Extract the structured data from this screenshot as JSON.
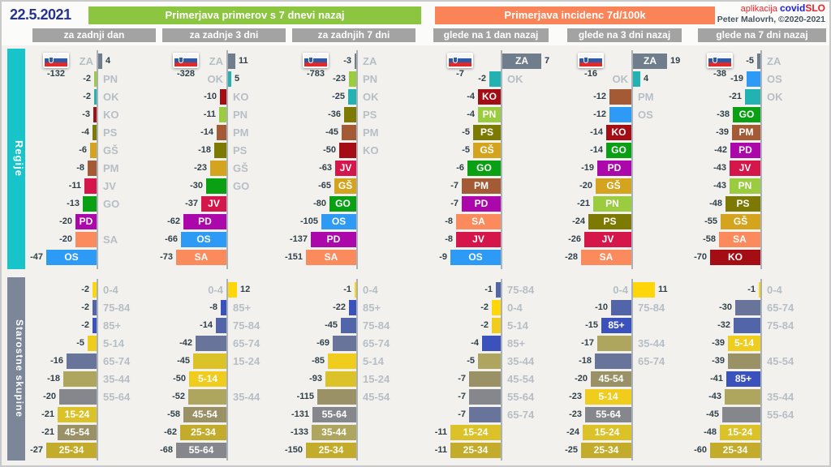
{
  "date": "22.5.2021",
  "headers": {
    "cases": "Primerjava primerov s 7 dnevi nazaj",
    "incidence": "Primerjava incidenc 7d/100k"
  },
  "subheaders": [
    "za zadnji dan",
    "za zadnje 3 dni",
    "za zadnjih 7 dni",
    "glede na 1 dan nazaj",
    "glede na 3 dni nazaj",
    "glede na 7 dni nazaj"
  ],
  "app": {
    "prefix": "aplikacija",
    "name_blue": "covid",
    "name_red": "SLO",
    "credit": "Peter Malovrh, ©2020-2021"
  },
  "sections": {
    "regions_label": "Regije",
    "ages_label": "Starostne skupine"
  },
  "colors": {
    "series": {
      "ZA": "#6f7d8c",
      "PN": "#9bcc40",
      "OK": "#22b2b2",
      "KO": "#a50d15",
      "PS": "#7d7a04",
      "GŠ": "#d5a41f",
      "PM": "#a35a35",
      "JV": "#d5164a",
      "GO": "#0aa014",
      "PD": "#ab07ab",
      "SA": "#fb8a5c",
      "OS": "#2d9bf5",
      "0-4": "#ffd60a",
      "5-14": "#f0cc1c",
      "15-24": "#dcc229",
      "25-34": "#c3ac2b",
      "35-44": "#aea55e",
      "45-54": "#9a9166",
      "55-64": "#85878c",
      "65-74": "#687499",
      "75-84": "#5265a8",
      "85+": "#3b52bd"
    },
    "ui": {
      "green_header": "#8cc540",
      "orange_header": "#fa8458",
      "subheader_gray": "#a3a3a3",
      "date_navy": "#27348b",
      "regions_cyan": "#16c4ca",
      "ages_slate": "#7b8698",
      "value_text": "#30414b",
      "muted_label": "#b6bec6",
      "axis": "#aab1b7",
      "brand_red": "#e8252a",
      "brand_blue": "#1f1fd0"
    }
  },
  "chart_data": [
    {
      "type": "bar",
      "section": "Regije",
      "period": "za zadnji dan",
      "flag_total": -132,
      "bars": [
        {
          "label": "ZA",
          "value": 4,
          "inside": false
        },
        {
          "label": "PN",
          "value": -2,
          "inside": false
        },
        {
          "label": "OK",
          "value": -2,
          "inside": false
        },
        {
          "label": "KO",
          "value": -3,
          "inside": false
        },
        {
          "label": "PS",
          "value": -4,
          "inside": false
        },
        {
          "label": "GŠ",
          "value": -6,
          "inside": false
        },
        {
          "label": "PM",
          "value": -8,
          "inside": false
        },
        {
          "label": "JV",
          "value": -11,
          "inside": false
        },
        {
          "label": "GO",
          "value": -13,
          "inside": false
        },
        {
          "label": "PD",
          "value": -20,
          "inside": true
        },
        {
          "label": "SA",
          "value": -20,
          "inside": false
        },
        {
          "label": "OS",
          "value": -47,
          "inside": true
        }
      ]
    },
    {
      "type": "bar",
      "section": "Regije",
      "period": "za zadnje 3 dni",
      "flag_total": -328,
      "bars": [
        {
          "label": "ZA",
          "value": 11,
          "inside": false
        },
        {
          "label": "OK",
          "value": 5,
          "inside": false
        },
        {
          "label": "KO",
          "value": -10,
          "inside": false
        },
        {
          "label": "PN",
          "value": -11,
          "inside": false
        },
        {
          "label": "PM",
          "value": -14,
          "inside": false
        },
        {
          "label": "PS",
          "value": -18,
          "inside": false
        },
        {
          "label": "GŠ",
          "value": -23,
          "inside": false
        },
        {
          "label": "GO",
          "value": -30,
          "inside": false
        },
        {
          "label": "JV",
          "value": -37,
          "inside": true
        },
        {
          "label": "PD",
          "value": -62,
          "inside": true
        },
        {
          "label": "OS",
          "value": -66,
          "inside": true
        },
        {
          "label": "SA",
          "value": -73,
          "inside": true
        }
      ]
    },
    {
      "type": "bar",
      "section": "Regije",
      "period": "za zadnjih 7 dni",
      "flag_total": -783,
      "bars": [
        {
          "label": "ZA",
          "value": -3,
          "inside": false
        },
        {
          "label": "PN",
          "value": -23,
          "inside": false
        },
        {
          "label": "OK",
          "value": -25,
          "inside": false
        },
        {
          "label": "PS",
          "value": -36,
          "inside": false
        },
        {
          "label": "PM",
          "value": -45,
          "inside": false
        },
        {
          "label": "KO",
          "value": -50,
          "inside": false
        },
        {
          "label": "JV",
          "value": -63,
          "inside": true
        },
        {
          "label": "GŠ",
          "value": -65,
          "inside": true
        },
        {
          "label": "GO",
          "value": -80,
          "inside": true
        },
        {
          "label": "OS",
          "value": -105,
          "inside": true
        },
        {
          "label": "PD",
          "value": -137,
          "inside": true
        },
        {
          "label": "SA",
          "value": -151,
          "inside": true
        }
      ]
    },
    {
      "type": "bar",
      "section": "Regije",
      "period": "glede na 1 dan nazaj",
      "flag_total": -7,
      "bars": [
        {
          "label": "ZA",
          "value": 7,
          "inside": true
        },
        {
          "label": "OK",
          "value": -2,
          "inside": false
        },
        {
          "label": "KO",
          "value": -4,
          "inside": true
        },
        {
          "label": "PN",
          "value": -4,
          "inside": true
        },
        {
          "label": "PS",
          "value": -5,
          "inside": true
        },
        {
          "label": "GŠ",
          "value": -5,
          "inside": true
        },
        {
          "label": "GO",
          "value": -6,
          "inside": true
        },
        {
          "label": "PM",
          "value": -7,
          "inside": true
        },
        {
          "label": "PD",
          "value": -7,
          "inside": true
        },
        {
          "label": "SA",
          "value": -8,
          "inside": true
        },
        {
          "label": "JV",
          "value": -8,
          "inside": true
        },
        {
          "label": "OS",
          "value": -9,
          "inside": true
        }
      ]
    },
    {
      "type": "bar",
      "section": "Regije",
      "period": "glede na 3 dni nazaj",
      "flag_total": -16,
      "bars": [
        {
          "label": "ZA",
          "value": 19,
          "inside": true
        },
        {
          "label": "OK",
          "value": 4,
          "inside": false
        },
        {
          "label": "PM",
          "value": -12,
          "inside": false
        },
        {
          "label": "OS",
          "value": -12,
          "inside": false
        },
        {
          "label": "KO",
          "value": -14,
          "inside": true
        },
        {
          "label": "GO",
          "value": -14,
          "inside": true
        },
        {
          "label": "PD",
          "value": -19,
          "inside": true
        },
        {
          "label": "GŠ",
          "value": -20,
          "inside": true
        },
        {
          "label": "PN",
          "value": -21,
          "inside": true
        },
        {
          "label": "PS",
          "value": -24,
          "inside": true
        },
        {
          "label": "JV",
          "value": -26,
          "inside": true
        },
        {
          "label": "SA",
          "value": -28,
          "inside": true
        }
      ]
    },
    {
      "type": "bar",
      "section": "Regije",
      "period": "glede na 7 dni nazaj",
      "flag_total": -38,
      "bars": [
        {
          "label": "ZA",
          "value": -5,
          "inside": false
        },
        {
          "label": "OS",
          "value": -19,
          "inside": false
        },
        {
          "label": "OK",
          "value": -21,
          "inside": false
        },
        {
          "label": "GO",
          "value": -38,
          "inside": true
        },
        {
          "label": "PM",
          "value": -39,
          "inside": true
        },
        {
          "label": "PD",
          "value": -42,
          "inside": true
        },
        {
          "label": "JV",
          "value": -43,
          "inside": true
        },
        {
          "label": "PN",
          "value": -43,
          "inside": true
        },
        {
          "label": "PS",
          "value": -48,
          "inside": true
        },
        {
          "label": "GŠ",
          "value": -55,
          "inside": true
        },
        {
          "label": "SA",
          "value": -58,
          "inside": true
        },
        {
          "label": "KO",
          "value": -70,
          "inside": true
        }
      ]
    },
    {
      "type": "bar",
      "section": "Starostne skupine",
      "period": "za zadnji dan",
      "flag_total": null,
      "bars": [
        {
          "label": "0-4",
          "value": -2,
          "inside": false
        },
        {
          "label": "75-84",
          "value": -2,
          "inside": false
        },
        {
          "label": "85+",
          "value": -2,
          "inside": false
        },
        {
          "label": "5-14",
          "value": -5,
          "inside": false
        },
        {
          "label": "65-74",
          "value": -16,
          "inside": false
        },
        {
          "label": "35-44",
          "value": -18,
          "inside": false
        },
        {
          "label": "55-64",
          "value": -20,
          "inside": false
        },
        {
          "label": "15-24",
          "value": -21,
          "inside": true
        },
        {
          "label": "45-54",
          "value": -21,
          "inside": true
        },
        {
          "label": "25-34",
          "value": -27,
          "inside": true
        }
      ]
    },
    {
      "type": "bar",
      "section": "Starostne skupine",
      "period": "za zadnje 3 dni",
      "flag_total": null,
      "bars": [
        {
          "label": "0-4",
          "value": 12,
          "inside": false
        },
        {
          "label": "85+",
          "value": -8,
          "inside": false
        },
        {
          "label": "75-84",
          "value": -14,
          "inside": false
        },
        {
          "label": "65-74",
          "value": -42,
          "inside": false
        },
        {
          "label": "15-24",
          "value": -45,
          "inside": false
        },
        {
          "label": "5-14",
          "value": -50,
          "inside": true
        },
        {
          "label": "35-44",
          "value": -52,
          "inside": false
        },
        {
          "label": "45-54",
          "value": -58,
          "inside": true
        },
        {
          "label": "25-34",
          "value": -62,
          "inside": true
        },
        {
          "label": "55-64",
          "value": -68,
          "inside": true
        }
      ]
    },
    {
      "type": "bar",
      "section": "Starostne skupine",
      "period": "za zadnjih 7 dni",
      "flag_total": null,
      "bars": [
        {
          "label": "0-4",
          "value": -1,
          "inside": false
        },
        {
          "label": "85+",
          "value": -22,
          "inside": false
        },
        {
          "label": "75-84",
          "value": -45,
          "inside": false
        },
        {
          "label": "65-74",
          "value": -69,
          "inside": false
        },
        {
          "label": "5-14",
          "value": -85,
          "inside": false
        },
        {
          "label": "15-24",
          "value": -93,
          "inside": false
        },
        {
          "label": "45-54",
          "value": -115,
          "inside": false
        },
        {
          "label": "55-64",
          "value": -131,
          "inside": true
        },
        {
          "label": "35-44",
          "value": -133,
          "inside": true
        },
        {
          "label": "25-34",
          "value": -150,
          "inside": true
        }
      ]
    },
    {
      "type": "bar",
      "section": "Starostne skupine",
      "period": "glede na 1 dan nazaj",
      "flag_total": null,
      "bars": [
        {
          "label": "75-84",
          "value": -1,
          "inside": false
        },
        {
          "label": "0-4",
          "value": -2,
          "inside": false
        },
        {
          "label": "5-14",
          "value": -2,
          "inside": false
        },
        {
          "label": "85+",
          "value": -4,
          "inside": false
        },
        {
          "label": "35-44",
          "value": -5,
          "inside": false
        },
        {
          "label": "45-54",
          "value": -7,
          "inside": false
        },
        {
          "label": "55-64",
          "value": -7,
          "inside": false
        },
        {
          "label": "65-74",
          "value": -7,
          "inside": false
        },
        {
          "label": "15-24",
          "value": -11,
          "inside": true
        },
        {
          "label": "25-34",
          "value": -11,
          "inside": true
        }
      ]
    },
    {
      "type": "bar",
      "section": "Starostne skupine",
      "period": "glede na 3 dni nazaj",
      "flag_total": null,
      "bars": [
        {
          "label": "0-4",
          "value": 11,
          "inside": false
        },
        {
          "label": "75-84",
          "value": -10,
          "inside": false
        },
        {
          "label": "85+",
          "value": -15,
          "inside": true
        },
        {
          "label": "35-44",
          "value": -17,
          "inside": false
        },
        {
          "label": "65-74",
          "value": -18,
          "inside": false
        },
        {
          "label": "45-54",
          "value": -20,
          "inside": true
        },
        {
          "label": "5-14",
          "value": -23,
          "inside": true
        },
        {
          "label": "55-64",
          "value": -23,
          "inside": true
        },
        {
          "label": "15-24",
          "value": -24,
          "inside": true
        },
        {
          "label": "25-34",
          "value": -25,
          "inside": true
        }
      ]
    },
    {
      "type": "bar",
      "section": "Starostne skupine",
      "period": "glede na 7 dni nazaj",
      "flag_total": null,
      "bars": [
        {
          "label": "0-4",
          "value": -1,
          "inside": false
        },
        {
          "label": "65-74",
          "value": -30,
          "inside": false
        },
        {
          "label": "75-84",
          "value": -32,
          "inside": false
        },
        {
          "label": "5-14",
          "value": -39,
          "inside": true
        },
        {
          "label": "45-54",
          "value": -39,
          "inside": false
        },
        {
          "label": "85+",
          "value": -41,
          "inside": true
        },
        {
          "label": "35-44",
          "value": -43,
          "inside": false
        },
        {
          "label": "55-64",
          "value": -45,
          "inside": false
        },
        {
          "label": "15-24",
          "value": -48,
          "inside": true
        },
        {
          "label": "25-34",
          "value": -60,
          "inside": true
        }
      ]
    }
  ]
}
